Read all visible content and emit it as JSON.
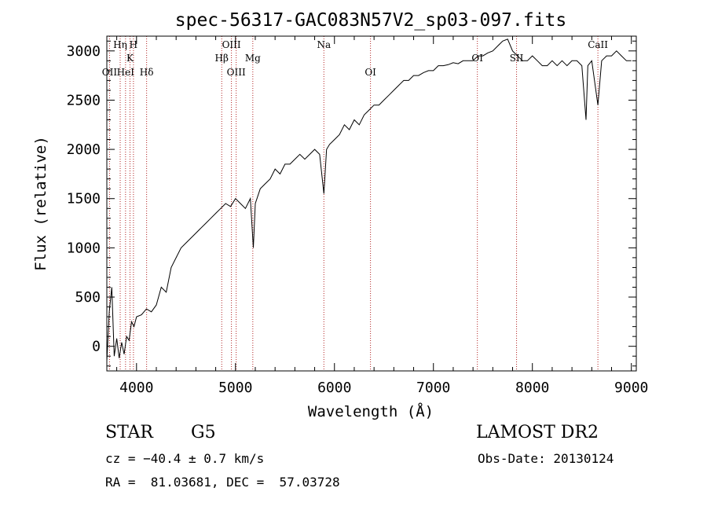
{
  "chart_data": {
    "type": "line",
    "title": "spec-56317-GAC083N57V2_sp03-097.fits",
    "xlabel": "Wavelength (Å)",
    "ylabel": "Flux (relative)",
    "xlim": [
      3700,
      9050
    ],
    "ylim": [
      -250,
      3150
    ],
    "xticks": [
      4000,
      5000,
      6000,
      7000,
      8000,
      9000
    ],
    "yticks": [
      0,
      500,
      1000,
      1500,
      2000,
      2500,
      3000
    ],
    "grid": false,
    "line_color": "#000000",
    "marker_color": "#b22222",
    "series": [
      {
        "x": [
          3700,
          3725,
          3750,
          3775,
          3800,
          3825,
          3850,
          3875,
          3900,
          3925,
          3950,
          3975,
          4000,
          4050,
          4100,
          4150,
          4200,
          4250,
          4300,
          4350,
          4400,
          4450,
          4500,
          4550,
          4600,
          4650,
          4700,
          4750,
          4800,
          4850,
          4900,
          4950,
          5000,
          5050,
          5100,
          5150,
          5180,
          5200,
          5250,
          5300,
          5350,
          5400,
          5450,
          5500,
          5550,
          5600,
          5650,
          5700,
          5750,
          5800,
          5850,
          5893,
          5920,
          5950,
          6000,
          6050,
          6100,
          6150,
          6200,
          6250,
          6300,
          6350,
          6400,
          6450,
          6500,
          6550,
          6600,
          6650,
          6700,
          6750,
          6800,
          6850,
          6900,
          6950,
          7000,
          7050,
          7100,
          7150,
          7200,
          7250,
          7300,
          7350,
          7400,
          7450,
          7500,
          7550,
          7600,
          7650,
          7700,
          7750,
          7800,
          7850,
          7900,
          7950,
          8000,
          8050,
          8100,
          8150,
          8200,
          8250,
          8300,
          8350,
          8400,
          8450,
          8500,
          8542,
          8560,
          8600,
          8662,
          8700,
          8750,
          8800,
          8850,
          8900,
          8950,
          9000
        ],
        "y": [
          -150,
          350,
          600,
          -100,
          80,
          -120,
          40,
          -80,
          100,
          60,
          250,
          200,
          300,
          320,
          380,
          350,
          420,
          600,
          550,
          800,
          900,
          1000,
          1050,
          1100,
          1150,
          1200,
          1250,
          1300,
          1350,
          1400,
          1450,
          1420,
          1500,
          1450,
          1400,
          1500,
          1000,
          1450,
          1600,
          1650,
          1700,
          1800,
          1750,
          1850,
          1850,
          1900,
          1950,
          1900,
          1950,
          2000,
          1950,
          1550,
          2000,
          2050,
          2100,
          2150,
          2250,
          2200,
          2300,
          2250,
          2350,
          2400,
          2450,
          2450,
          2500,
          2550,
          2600,
          2650,
          2700,
          2700,
          2750,
          2750,
          2780,
          2800,
          2800,
          2850,
          2850,
          2860,
          2880,
          2870,
          2900,
          2900,
          2900,
          2950,
          2950,
          2980,
          3000,
          3050,
          3100,
          3120,
          3000,
          2950,
          2900,
          2900,
          2950,
          2900,
          2850,
          2850,
          2900,
          2850,
          2900,
          2850,
          2900,
          2900,
          2850,
          2300,
          2850,
          2900,
          2450,
          2900,
          2950,
          2950,
          3000,
          2950,
          2900,
          2900
        ]
      }
    ],
    "lines": [
      {
        "name": "OII",
        "wavelength": 3727,
        "row": 3
      },
      {
        "name": "Hη",
        "wavelength": 3835,
        "row": 1
      },
      {
        "name": "HeI",
        "wavelength": 3889,
        "row": 3
      },
      {
        "name": "K",
        "wavelength": 3934,
        "row": 2
      },
      {
        "name": "H",
        "wavelength": 3969,
        "row": 1
      },
      {
        "name": "Hδ",
        "wavelength": 4102,
        "row": 3
      },
      {
        "name": "Hβ",
        "wavelength": 4861,
        "row": 2
      },
      {
        "name": "OIII",
        "wavelength": 4959,
        "row": 1
      },
      {
        "name": "OIII",
        "wavelength": 5007,
        "row": 3
      },
      {
        "name": "Mg",
        "wavelength": 5175,
        "row": 2
      },
      {
        "name": "Na",
        "wavelength": 5893,
        "row": 1
      },
      {
        "name": "OI",
        "wavelength": 6364,
        "row": 3
      },
      {
        "name": "OI",
        "wavelength": 7444,
        "row": 2
      },
      {
        "name": "SII",
        "wavelength": 7840,
        "row": 2
      },
      {
        "name": "CaII",
        "wavelength": 8662,
        "row": 1
      }
    ]
  },
  "info": {
    "object_class": "STAR",
    "subclass": "G5",
    "survey": "LAMOST DR2",
    "redshift": "cz = −40.4 ± 0.7 km/s",
    "obs_date": "Obs-Date: 20130124",
    "coords": "RA =  81.03681, DEC =  57.03728"
  }
}
